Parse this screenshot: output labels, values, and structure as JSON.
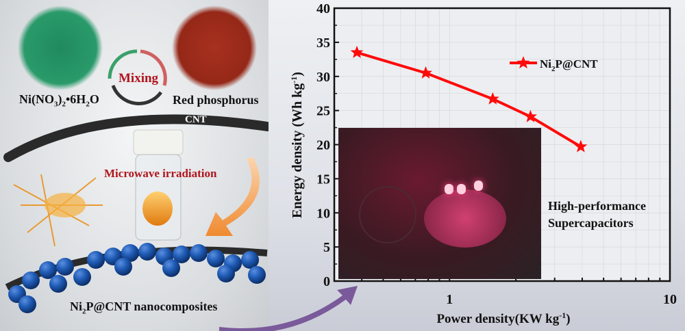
{
  "illustration": {
    "precursor_1": "Ni(NO3)2•6H2O",
    "precursor_2": "Red phosphorus",
    "mixing": "Mixing",
    "cnt": "CNT",
    "process": "Microwave irradiation",
    "product": "Ni2P@CNT nanocomposites",
    "colors": {
      "green_powder": "#1f8a5e",
      "red_powder": "#9c2a1a",
      "spheres": "#1f5bb5",
      "accent_red": "#b0141c"
    }
  },
  "inset": {
    "caption_line1": "High-performance",
    "caption_line2": "Supercapacitors"
  },
  "chart_data": {
    "type": "line",
    "title": "",
    "xlabel": "Power density(KW kg-1)",
    "ylabel": "Energy density (Wh kg-1)",
    "xscale": "log",
    "xlim": [
      0.3,
      10
    ],
    "ylim": [
      0,
      40
    ],
    "x_ticks": [
      "1",
      "10"
    ],
    "y_ticks": [
      "0",
      "5",
      "10",
      "15",
      "20",
      "25",
      "30",
      "35",
      "40"
    ],
    "grid": true,
    "legend_position": "top-right",
    "series": [
      {
        "name": "Ni2P@CNT",
        "color": "#ff0a0a",
        "marker": "star",
        "x": [
          0.38,
          0.78,
          1.57,
          2.33,
          3.94
        ],
        "y": [
          33.5,
          30.5,
          26.7,
          24.1,
          19.7
        ]
      }
    ]
  }
}
